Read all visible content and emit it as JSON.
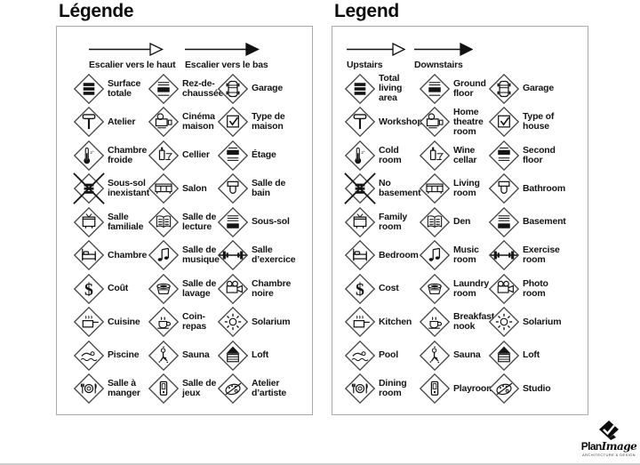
{
  "panels": [
    {
      "title": "Légende",
      "arrows": [
        {
          "label": "Escalier vers le haut",
          "style": "open"
        },
        {
          "label": "Escalier vers le bas",
          "style": "filled"
        }
      ],
      "items": [
        {
          "icon": "total-area",
          "label": "Surface\ntotale"
        },
        {
          "icon": "ground-floor",
          "label": "Rez-de-\nchaussée"
        },
        {
          "icon": "garage-car",
          "label": "Garage"
        },
        {
          "icon": "hammer",
          "label": "Atelier"
        },
        {
          "icon": "projector",
          "label": "Cinéma\nmaison"
        },
        {
          "icon": "house-check",
          "label": "Type de\nmaison"
        },
        {
          "icon": "thermometer",
          "label": "Chambre\nfroide"
        },
        {
          "icon": "wine-bottle",
          "label": "Cellier"
        },
        {
          "icon": "second-floor",
          "label": "Étage"
        },
        {
          "icon": "no-basement",
          "label": "Sous-sol\ninexistant"
        },
        {
          "icon": "sofa",
          "label": "Salon"
        },
        {
          "icon": "toilet",
          "label": "Salle de\nbain"
        },
        {
          "icon": "tv",
          "label": "Salle\nfamiliale"
        },
        {
          "icon": "open-book",
          "label": "Salle de\nlecture"
        },
        {
          "icon": "basement-bar",
          "label": "Sous-sol"
        },
        {
          "icon": "bed",
          "label": "Chambre"
        },
        {
          "icon": "music-note",
          "label": "Salle de\nmusique"
        },
        {
          "icon": "dumbbell",
          "label": "Salle\nd’exercice"
        },
        {
          "icon": "dollar",
          "label": "Coût"
        },
        {
          "icon": "washer",
          "label": "Salle de\nlavage"
        },
        {
          "icon": "camera",
          "label": "Chambre\nnoire"
        },
        {
          "icon": "cooking-pot",
          "label": "Cuisine"
        },
        {
          "icon": "coffee-cup",
          "label": "Coin-\nrepas"
        },
        {
          "icon": "sun",
          "label": "Solarium"
        },
        {
          "icon": "swimmer",
          "label": "Piscine"
        },
        {
          "icon": "sauna-person",
          "label": "Sauna"
        },
        {
          "icon": "loft-roof",
          "label": "Loft"
        },
        {
          "icon": "dining-plate",
          "label": "Salle à\nmanger"
        },
        {
          "icon": "toy-block",
          "label": "Salle de\njeux"
        },
        {
          "icon": "palette",
          "label": "Atelier\nd’artiste"
        }
      ]
    },
    {
      "title": "Legend",
      "arrows": [
        {
          "label": "Upstairs",
          "style": "open"
        },
        {
          "label": "Downstairs",
          "style": "filled"
        }
      ],
      "items": [
        {
          "icon": "total-area",
          "label": "Total\nliving\narea"
        },
        {
          "icon": "ground-floor",
          "label": "Ground\nfloor"
        },
        {
          "icon": "garage-car",
          "label": "Garage"
        },
        {
          "icon": "hammer",
          "label": "Workshop"
        },
        {
          "icon": "projector",
          "label": "Home\ntheatre\nroom"
        },
        {
          "icon": "house-check",
          "label": "Type of\nhouse"
        },
        {
          "icon": "thermometer",
          "label": "Cold\nroom"
        },
        {
          "icon": "wine-bottle",
          "label": "Wine\ncellar"
        },
        {
          "icon": "second-floor",
          "label": "Second\nfloor"
        },
        {
          "icon": "no-basement",
          "label": "No\nbasement"
        },
        {
          "icon": "sofa",
          "label": "Living\nroom"
        },
        {
          "icon": "toilet",
          "label": "Bathroom"
        },
        {
          "icon": "tv",
          "label": "Family\nroom"
        },
        {
          "icon": "open-book",
          "label": "Den"
        },
        {
          "icon": "basement-bar",
          "label": "Basement"
        },
        {
          "icon": "bed",
          "label": "Bedroom"
        },
        {
          "icon": "music-note",
          "label": "Music\nroom"
        },
        {
          "icon": "dumbbell",
          "label": "Exercise\nroom"
        },
        {
          "icon": "dollar",
          "label": "Cost"
        },
        {
          "icon": "washer",
          "label": "Laundry\nroom"
        },
        {
          "icon": "camera",
          "label": "Photo\nroom"
        },
        {
          "icon": "cooking-pot",
          "label": "Kitchen"
        },
        {
          "icon": "coffee-cup",
          "label": "Breakfast\nnook"
        },
        {
          "icon": "sun",
          "label": "Solarium"
        },
        {
          "icon": "swimmer",
          "label": "Pool"
        },
        {
          "icon": "sauna-person",
          "label": "Sauna"
        },
        {
          "icon": "loft-roof",
          "label": "Loft"
        },
        {
          "icon": "dining-plate",
          "label": "Dining\nroom"
        },
        {
          "icon": "toy-block",
          "label": "Playroom"
        },
        {
          "icon": "palette",
          "label": "Studio"
        }
      ]
    }
  ],
  "logo": {
    "brand_plan": "Plan",
    "brand_image": "Image",
    "tagline": "ARCHITECTURE & DESIGN"
  },
  "colors": {
    "panel_border": "#ababab",
    "diamond_stroke": "#474747",
    "glyph": "#141414",
    "text": "#151515",
    "bottom_rule": "#cfcfcf"
  }
}
